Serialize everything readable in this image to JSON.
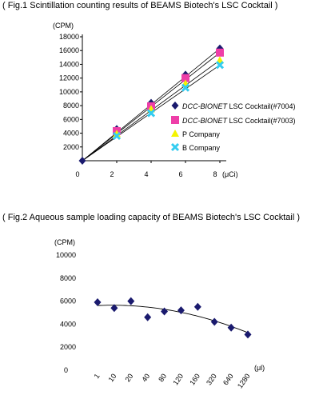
{
  "figure1": {
    "title": "( Fig.1 Scintillation counting results of BEAMS Biotech's LSC Cocktail )"
  },
  "figure2": {
    "title": "( Fig.2 Aqueous sample loading capacity of BEAMS Biotech's LSC Cocktail )"
  },
  "chart_data": [
    {
      "type": "scatter",
      "title": "( Fig.1 Scintillation counting results of BEAMS Biotech's LSC Cocktail )",
      "ylabel": "(CPM)",
      "xlabel": "(μCi)",
      "xlim": [
        0,
        8
      ],
      "ylim": [
        0,
        18000
      ],
      "x_ticks": [
        "0",
        "2",
        "4",
        "6",
        "8"
      ],
      "y_ticks": [
        "2000",
        "4000",
        "6000",
        "8000",
        "10000",
        "12000",
        "14000",
        "16000",
        "18000"
      ],
      "trendlines": true,
      "legend_position": "right",
      "series": [
        {
          "name_italic": "DCC-BIONET",
          "name_rest": " LSC Cocktail(#7004)",
          "marker": "diamond",
          "color": "#1a1a6e",
          "x": [
            0,
            2,
            4,
            6,
            8
          ],
          "y": [
            0,
            4600,
            8400,
            12500,
            16300
          ]
        },
        {
          "name_italic": "DCC-BIONET",
          "name_rest": " LSC Cocktail(#7003)",
          "marker": "square",
          "color": "#ee3fa8",
          "x": [
            0,
            2,
            4,
            6,
            8
          ],
          "y": [
            0,
            4300,
            7900,
            12000,
            15700
          ]
        },
        {
          "name_italic": "",
          "name_rest": "P Company",
          "marker": "triangle",
          "color": "#f4f400",
          "x": [
            0,
            2,
            4,
            6,
            8
          ],
          "y": [
            0,
            3900,
            7500,
            11200,
            14600
          ]
        },
        {
          "name_italic": "",
          "name_rest": "B Company",
          "marker": "x",
          "color": "#33ccf0",
          "x": [
            0,
            2,
            4,
            6,
            8
          ],
          "y": [
            0,
            3600,
            6900,
            10600,
            13900
          ]
        }
      ]
    },
    {
      "type": "scatter",
      "title": "( Fig.2 Aqueous sample loading capacity of BEAMS Biotech's LSC Cocktail )",
      "ylabel": "(CPM)",
      "xlabel": "(μl)",
      "ylim": [
        0,
        10000
      ],
      "y_ticks": [
        "0",
        "2000",
        "4000",
        "6000",
        "8000",
        "10000"
      ],
      "categories": [
        "1",
        "10",
        "20",
        "40",
        "80",
        "120",
        "160",
        "320",
        "640",
        "1280"
      ],
      "trendline": "polynomial",
      "series": [
        {
          "name": "",
          "marker": "diamond",
          "color": "#1a1a6e",
          "values": [
            5900,
            5400,
            6000,
            4600,
            5100,
            5200,
            5500,
            4200,
            3700,
            3100
          ]
        }
      ]
    }
  ]
}
